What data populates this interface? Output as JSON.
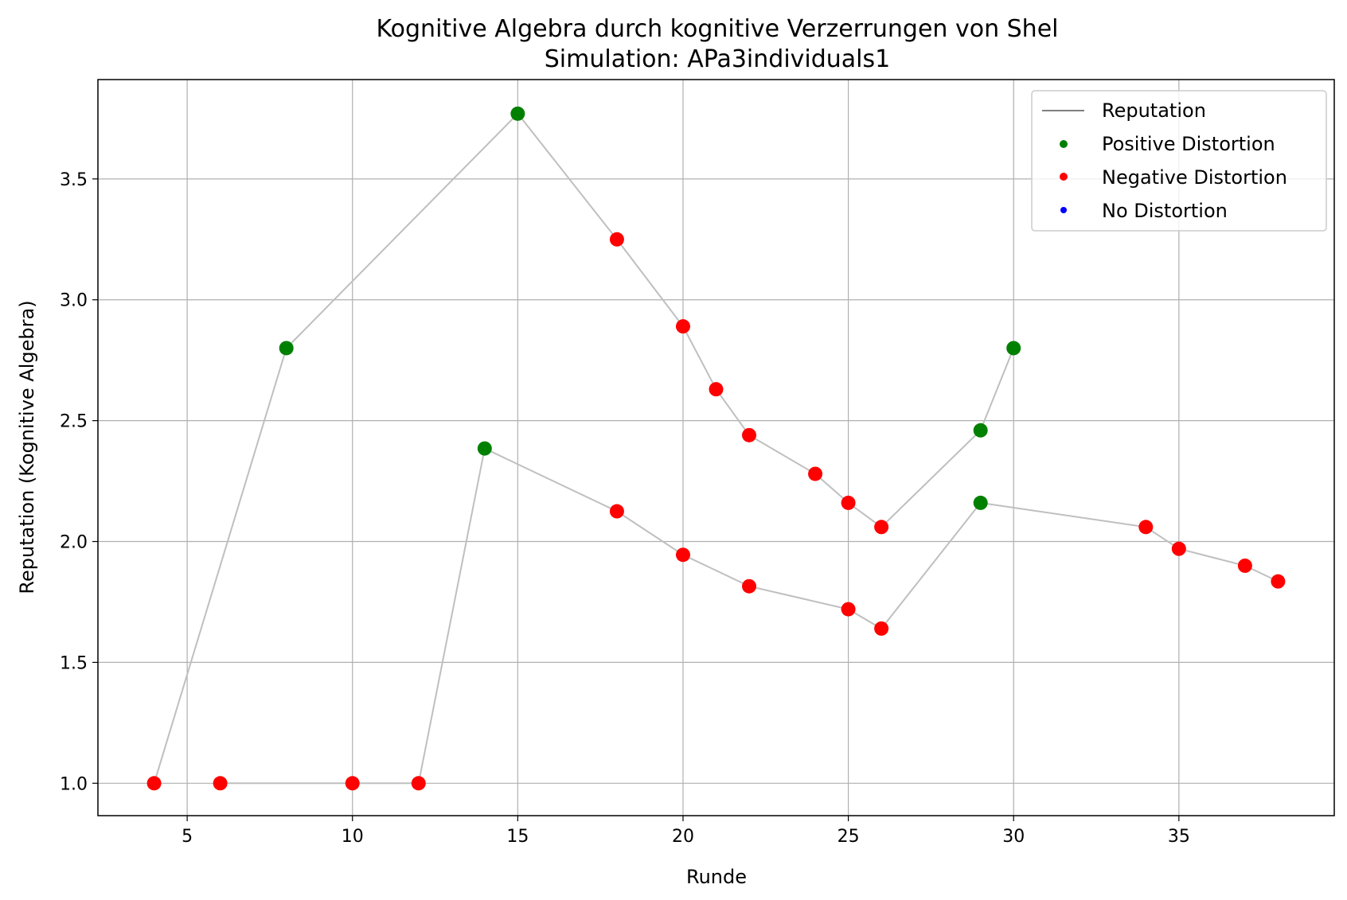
{
  "chart_data": {
    "type": "line",
    "title": "Kognitive Algebra durch kognitive Verzerrungen von Shel",
    "subtitle": "Simulation: APa3individuals1",
    "xlabel": "Runde",
    "ylabel": "Reputation (Kognitive Algebra)",
    "xlim": [
      2.3,
      39.7
    ],
    "ylim": [
      0.866,
      3.911
    ],
    "xticks": [
      5,
      10,
      15,
      20,
      25,
      30,
      35
    ],
    "yticks": [
      1.0,
      1.5,
      2.0,
      2.5,
      3.0,
      3.5
    ],
    "xtick_labels": [
      "5",
      "10",
      "15",
      "20",
      "25",
      "30",
      "35"
    ],
    "ytick_labels": [
      "1.0",
      "1.5",
      "2.0",
      "2.5",
      "3.0",
      "3.5"
    ],
    "grid": true,
    "legend_position": "top-right",
    "legend": [
      "Reputation",
      "Positive Distortion",
      "Negative Distortion",
      "No Distortion"
    ],
    "colors": {
      "line": "#bfbfbf",
      "legend_line": "#808080",
      "positive": "#008000",
      "negative": "#ff0000",
      "none": "#0000ff",
      "grid": "#b0b0b0"
    },
    "series": [
      {
        "points": [
          {
            "x": 4,
            "y": 1.0,
            "distortion": "negative"
          },
          {
            "x": 8,
            "y": 2.8,
            "distortion": "positive"
          },
          {
            "x": 15,
            "y": 3.77,
            "distortion": "positive"
          },
          {
            "x": 18,
            "y": 3.25,
            "distortion": "negative"
          },
          {
            "x": 20,
            "y": 2.89,
            "distortion": "negative"
          },
          {
            "x": 21,
            "y": 2.63,
            "distortion": "negative"
          },
          {
            "x": 22,
            "y": 2.44,
            "distortion": "negative"
          },
          {
            "x": 24,
            "y": 2.28,
            "distortion": "negative"
          },
          {
            "x": 25,
            "y": 2.16,
            "distortion": "negative"
          },
          {
            "x": 26,
            "y": 2.06,
            "distortion": "negative"
          },
          {
            "x": 29,
            "y": 2.46,
            "distortion": "positive"
          },
          {
            "x": 30,
            "y": 2.8,
            "distortion": "positive"
          }
        ]
      },
      {
        "points": [
          {
            "x": 6,
            "y": 1.0,
            "distortion": "negative"
          },
          {
            "x": 10,
            "y": 1.0,
            "distortion": "negative"
          },
          {
            "x": 12,
            "y": 1.0,
            "distortion": "negative"
          },
          {
            "x": 14,
            "y": 2.385,
            "distortion": "positive"
          },
          {
            "x": 18,
            "y": 2.125,
            "distortion": "negative"
          },
          {
            "x": 20,
            "y": 1.945,
            "distortion": "negative"
          },
          {
            "x": 22,
            "y": 1.815,
            "distortion": "negative"
          },
          {
            "x": 25,
            "y": 1.72,
            "distortion": "negative"
          },
          {
            "x": 26,
            "y": 1.64,
            "distortion": "negative"
          },
          {
            "x": 29,
            "y": 2.16,
            "distortion": "positive"
          },
          {
            "x": 34,
            "y": 2.06,
            "distortion": "negative"
          },
          {
            "x": 35,
            "y": 1.97,
            "distortion": "negative"
          },
          {
            "x": 37,
            "y": 1.9,
            "distortion": "negative"
          },
          {
            "x": 38,
            "y": 1.835,
            "distortion": "negative"
          }
        ]
      }
    ]
  }
}
